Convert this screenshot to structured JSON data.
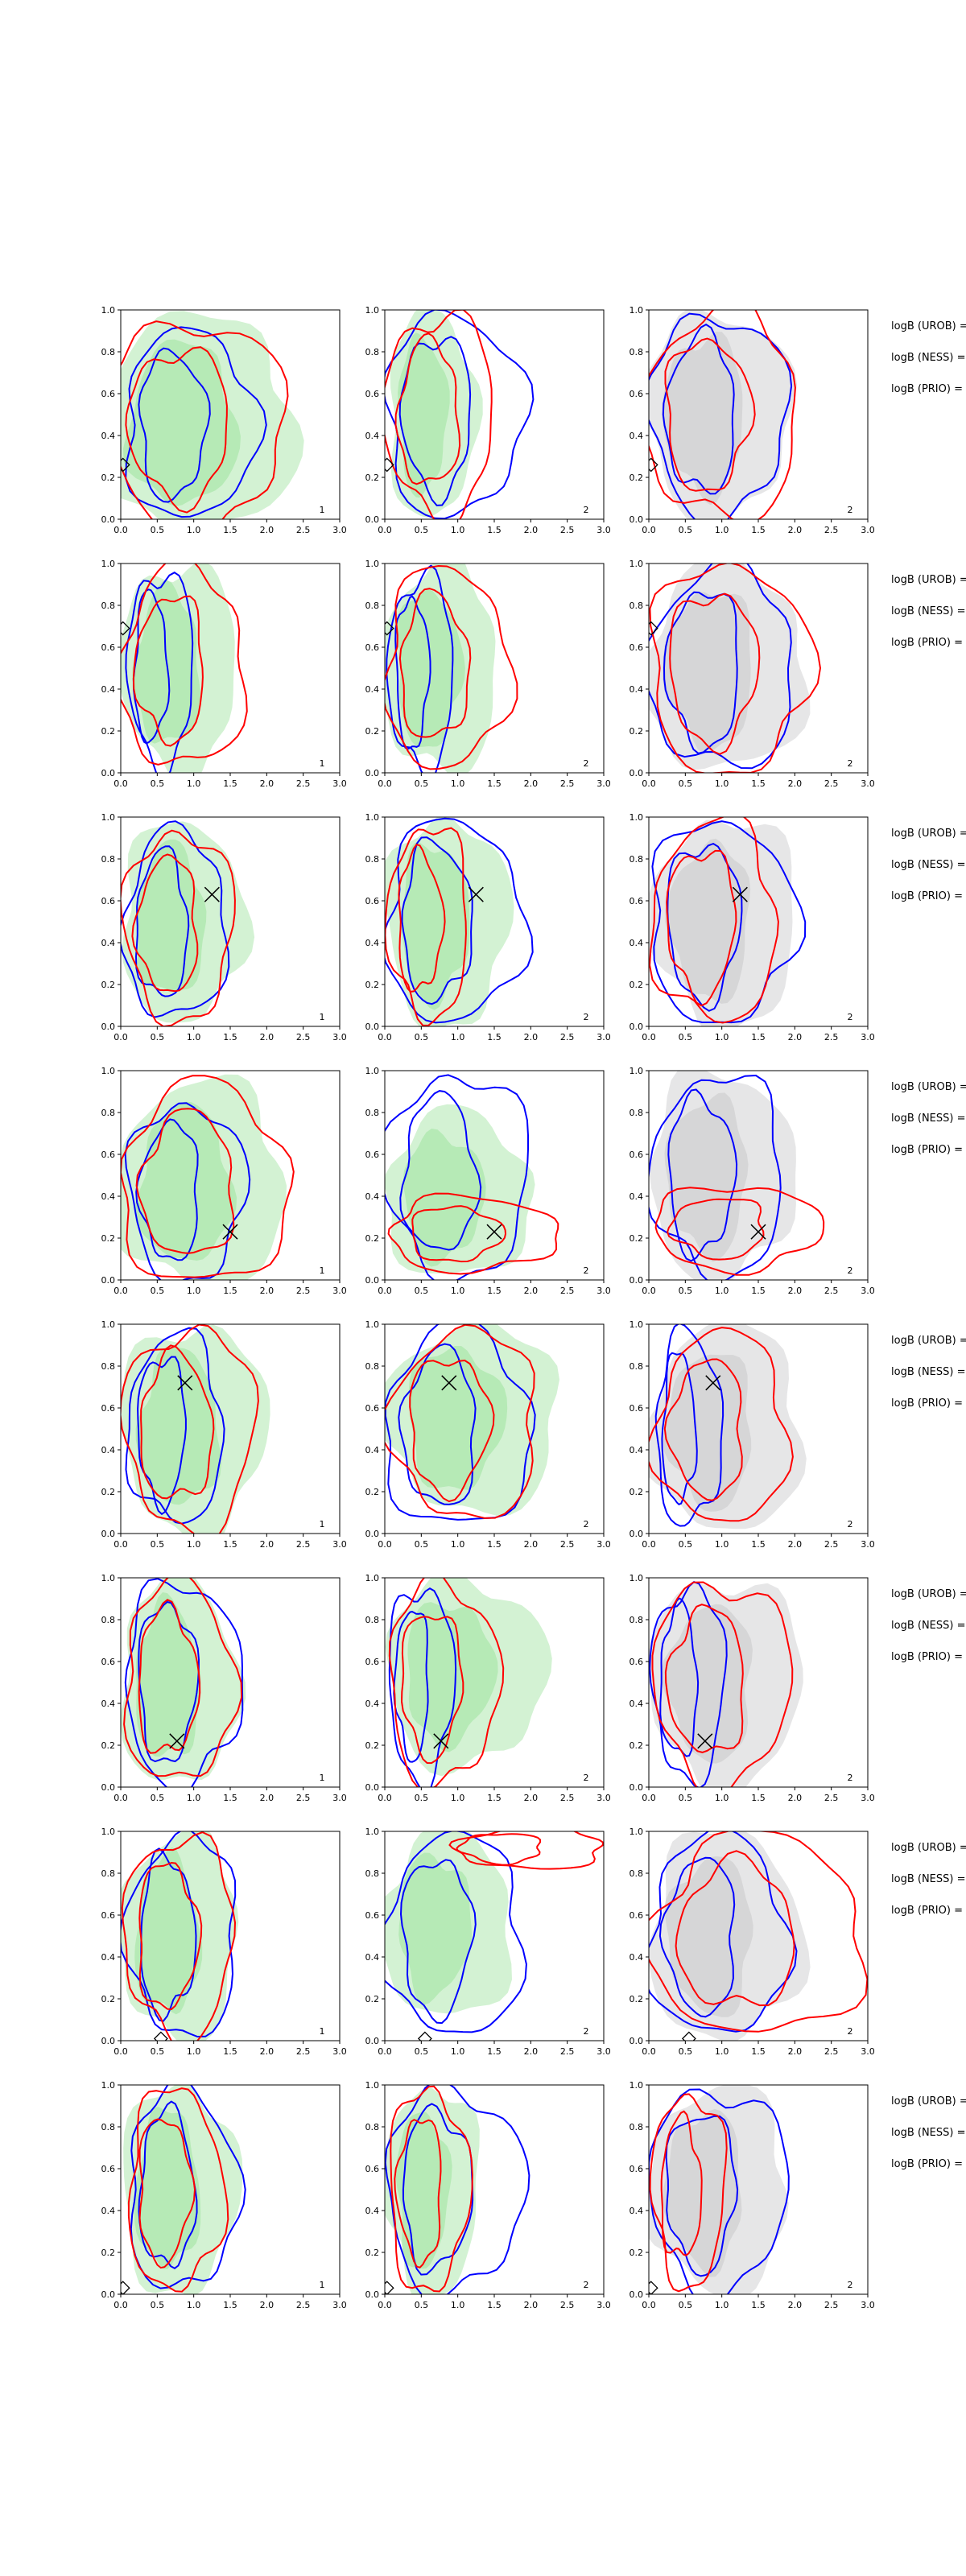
{
  "chart_data": {
    "type": "contour",
    "title": "",
    "xlabel": "",
    "ylabel": "",
    "xlim": [
      0.0,
      3.0
    ],
    "ylim": [
      0.0,
      1.0
    ],
    "x_ticks": [
      "0.0",
      "0.5",
      "1.0",
      "1.5",
      "2.0",
      "2.5",
      "3.0"
    ],
    "y_ticks": [
      "0.0",
      "0.2",
      "0.4",
      "0.6",
      "0.8",
      "1.0"
    ],
    "legend_labels": [
      "logB (UROB) =",
      "logB (NESS) =",
      "logB (PRIO) ="
    ],
    "colors": {
      "green_fill": "#9ee39e",
      "grey_fill": "#c8c8ca",
      "blue_line": "#0000ff",
      "red_line": "#ff0000",
      "marker": "#000000"
    },
    "panels": [
      {
        "label": "1",
        "fill": "green",
        "marker": {
          "type": "diamond",
          "x": 0.03,
          "y": 0.26
        },
        "blue": {
          "x": 0.95,
          "y": 0.45,
          "rx": 0.9,
          "ry": 0.45
        },
        "red": {
          "x": 1.0,
          "y": 0.45,
          "rx": 1.25,
          "ry": 0.5
        },
        "shade": {
          "x": 1.05,
          "y": 0.45,
          "rx": 1.35,
          "ry": 0.52
        }
      },
      {
        "label": "2",
        "fill": "green",
        "marker": {
          "type": "diamond",
          "x": 0.03,
          "y": 0.26
        },
        "blue": {
          "x": 0.95,
          "y": 0.5,
          "rx": 0.95,
          "ry": 0.48
        },
        "red": {
          "x": 0.75,
          "y": 0.5,
          "rx": 0.75,
          "ry": 0.48
        },
        "shade": {
          "x": 0.65,
          "y": 0.5,
          "rx": 0.6,
          "ry": 0.5
        }
      },
      {
        "label": "2",
        "fill": "grey",
        "marker": {
          "type": "diamond",
          "x": 0.03,
          "y": 0.26
        },
        "blue": {
          "x": 0.95,
          "y": 0.5,
          "rx": 0.95,
          "ry": 0.48
        },
        "red": {
          "x": 1.0,
          "y": 0.5,
          "rx": 1.05,
          "ry": 0.5
        },
        "shade": {
          "x": 0.95,
          "y": 0.5,
          "rx": 1.0,
          "ry": 0.5
        }
      },
      {
        "label": "1",
        "fill": "green",
        "marker": {
          "type": "diamond",
          "x": 0.03,
          "y": 0.69
        },
        "blue": {
          "x": 0.55,
          "y": 0.5,
          "rx": 0.45,
          "ry": 0.46
        },
        "red": {
          "x": 0.85,
          "y": 0.5,
          "rx": 0.85,
          "ry": 0.48
        },
        "shade": {
          "x": 0.8,
          "y": 0.5,
          "rx": 0.8,
          "ry": 0.5
        }
      },
      {
        "label": "2",
        "fill": "green",
        "marker": {
          "type": "diamond",
          "x": 0.03,
          "y": 0.69
        },
        "blue": {
          "x": 0.5,
          "y": 0.48,
          "rx": 0.45,
          "ry": 0.46
        },
        "red": {
          "x": 0.85,
          "y": 0.5,
          "rx": 0.85,
          "ry": 0.48
        },
        "shade": {
          "x": 0.75,
          "y": 0.5,
          "rx": 0.8,
          "ry": 0.5
        }
      },
      {
        "label": "2",
        "fill": "grey",
        "marker": {
          "type": "diamond",
          "x": 0.03,
          "y": 0.69
        },
        "blue": {
          "x": 1.0,
          "y": 0.5,
          "rx": 1.0,
          "ry": 0.48
        },
        "red": {
          "x": 1.1,
          "y": 0.5,
          "rx": 1.1,
          "ry": 0.5
        },
        "shade": {
          "x": 1.05,
          "y": 0.5,
          "rx": 1.1,
          "ry": 0.5
        }
      },
      {
        "label": "1",
        "fill": "green",
        "marker": {
          "type": "cross",
          "x": 1.25,
          "y": 0.63
        },
        "blue": {
          "x": 0.75,
          "y": 0.48,
          "rx": 0.7,
          "ry": 0.45
        },
        "red": {
          "x": 0.8,
          "y": 0.48,
          "rx": 0.75,
          "ry": 0.45
        },
        "shade": {
          "x": 0.85,
          "y": 0.5,
          "rx": 0.85,
          "ry": 0.48
        }
      },
      {
        "label": "2",
        "fill": "green",
        "marker": {
          "type": "cross",
          "x": 1.25,
          "y": 0.63
        },
        "blue": {
          "x": 0.95,
          "y": 0.5,
          "rx": 0.95,
          "ry": 0.48
        },
        "red": {
          "x": 0.6,
          "y": 0.5,
          "rx": 0.55,
          "ry": 0.46
        },
        "shade": {
          "x": 0.85,
          "y": 0.5,
          "rx": 0.85,
          "ry": 0.5
        }
      },
      {
        "label": "2",
        "fill": "grey",
        "marker": {
          "type": "cross",
          "x": 1.25,
          "y": 0.63
        },
        "blue": {
          "x": 1.0,
          "y": 0.5,
          "rx": 1.0,
          "ry": 0.48
        },
        "red": {
          "x": 0.9,
          "y": 0.5,
          "rx": 0.85,
          "ry": 0.48
        },
        "shade": {
          "x": 1.05,
          "y": 0.5,
          "rx": 1.0,
          "ry": 0.5
        }
      },
      {
        "label": "1",
        "fill": "green",
        "marker": {
          "type": "cross",
          "x": 1.5,
          "y": 0.23
        },
        "blue": {
          "x": 0.9,
          "y": 0.42,
          "rx": 0.8,
          "ry": 0.42
        },
        "red": {
          "x": 1.15,
          "y": 0.45,
          "rx": 1.15,
          "ry": 0.48
        },
        "shade": {
          "x": 1.1,
          "y": 0.45,
          "rx": 1.15,
          "ry": 0.5
        }
      },
      {
        "label": "2",
        "fill": "green",
        "marker": {
          "type": "cross",
          "x": 1.5,
          "y": 0.23
        },
        "blue": {
          "x": 1.0,
          "y": 0.5,
          "rx": 1.0,
          "ry": 0.48
        },
        "red": {
          "x": 1.2,
          "y": 0.22,
          "rx": 1.15,
          "ry": 0.18
        },
        "shade": {
          "x": 1.0,
          "y": 0.4,
          "rx": 1.0,
          "ry": 0.4
        }
      },
      {
        "label": "2",
        "fill": "grey",
        "marker": {
          "type": "cross",
          "x": 1.5,
          "y": 0.23
        },
        "blue": {
          "x": 0.95,
          "y": 0.5,
          "rx": 0.9,
          "ry": 0.48
        },
        "red": {
          "x": 1.2,
          "y": 0.25,
          "rx": 1.15,
          "ry": 0.2
        },
        "shade": {
          "x": 1.0,
          "y": 0.5,
          "rx": 1.0,
          "ry": 0.5
        }
      },
      {
        "label": "1",
        "fill": "green",
        "marker": {
          "type": "cross",
          "x": 0.88,
          "y": 0.72
        },
        "blue": {
          "x": 0.75,
          "y": 0.5,
          "rx": 0.65,
          "ry": 0.45
        },
        "red": {
          "x": 0.95,
          "y": 0.5,
          "rx": 0.9,
          "ry": 0.48
        },
        "shade": {
          "x": 1.0,
          "y": 0.5,
          "rx": 1.0,
          "ry": 0.5
        }
      },
      {
        "label": "2",
        "fill": "green",
        "marker": {
          "type": "cross",
          "x": 0.88,
          "y": 0.72
        },
        "blue": {
          "x": 1.0,
          "y": 0.5,
          "rx": 1.0,
          "ry": 0.48
        },
        "red": {
          "x": 1.1,
          "y": 0.52,
          "rx": 1.0,
          "ry": 0.45
        },
        "shade": {
          "x": 1.2,
          "y": 0.55,
          "rx": 1.2,
          "ry": 0.45
        }
      },
      {
        "label": "2",
        "fill": "grey",
        "marker": {
          "type": "cross",
          "x": 0.88,
          "y": 0.72
        },
        "blue": {
          "x": 0.55,
          "y": 0.5,
          "rx": 0.45,
          "ry": 0.46
        },
        "red": {
          "x": 1.0,
          "y": 0.5,
          "rx": 0.9,
          "ry": 0.46
        },
        "shade": {
          "x": 1.05,
          "y": 0.5,
          "rx": 1.05,
          "ry": 0.5
        }
      },
      {
        "label": "1",
        "fill": "green",
        "marker": {
          "type": "cross",
          "x": 0.77,
          "y": 0.22
        },
        "blue": {
          "x": 0.85,
          "y": 0.5,
          "rx": 0.8,
          "ry": 0.48
        },
        "red": {
          "x": 0.8,
          "y": 0.5,
          "rx": 0.75,
          "ry": 0.48
        },
        "shade": {
          "x": 0.8,
          "y": 0.5,
          "rx": 0.8,
          "ry": 0.5
        }
      },
      {
        "label": "2",
        "fill": "green",
        "marker": {
          "type": "cross",
          "x": 0.77,
          "y": 0.22
        },
        "blue": {
          "x": 0.5,
          "y": 0.5,
          "rx": 0.45,
          "ry": 0.46
        },
        "red": {
          "x": 0.8,
          "y": 0.5,
          "rx": 0.75,
          "ry": 0.48
        },
        "shade": {
          "x": 1.1,
          "y": 0.55,
          "rx": 1.1,
          "ry": 0.45
        }
      },
      {
        "label": "2",
        "fill": "grey",
        "marker": {
          "type": "cross",
          "x": 0.77,
          "y": 0.22
        },
        "blue": {
          "x": 0.55,
          "y": 0.5,
          "rx": 0.5,
          "ry": 0.46
        },
        "red": {
          "x": 1.0,
          "y": 0.5,
          "rx": 0.95,
          "ry": 0.48
        },
        "shade": {
          "x": 1.05,
          "y": 0.5,
          "rx": 1.05,
          "ry": 0.5
        }
      },
      {
        "label": "1",
        "fill": "green",
        "marker": {
          "type": "diamond",
          "x": 0.55,
          "y": 0.01
        },
        "blue": {
          "x": 0.85,
          "y": 0.5,
          "rx": 0.75,
          "ry": 0.48
        },
        "red": {
          "x": 0.8,
          "y": 0.5,
          "rx": 0.75,
          "ry": 0.48
        },
        "shade": {
          "x": 0.8,
          "y": 0.5,
          "rx": 0.8,
          "ry": 0.5
        }
      },
      {
        "label": "2",
        "fill": "green",
        "marker": {
          "type": "diamond",
          "x": 0.55,
          "y": 0.01
        },
        "blue": {
          "x": 0.95,
          "y": 0.5,
          "rx": 0.95,
          "ry": 0.48
        },
        "red": {
          "x": 2.0,
          "y": 0.92,
          "rx": 1.0,
          "ry": 0.1
        },
        "shade": {
          "x": 0.85,
          "y": 0.55,
          "rx": 0.9,
          "ry": 0.45
        }
      },
      {
        "label": "2",
        "fill": "grey",
        "marker": {
          "type": "diamond",
          "x": 0.55,
          "y": 0.01
        },
        "blue": {
          "x": 0.95,
          "y": 0.5,
          "rx": 0.95,
          "ry": 0.48
        },
        "red": {
          "x": 1.5,
          "y": 0.5,
          "rx": 1.45,
          "ry": 0.48
        },
        "shade": {
          "x": 1.05,
          "y": 0.5,
          "rx": 1.05,
          "ry": 0.5
        }
      },
      {
        "label": "1",
        "fill": "green",
        "marker": {
          "type": "diamond",
          "x": 0.03,
          "y": 0.03
        },
        "blue": {
          "x": 0.85,
          "y": 0.5,
          "rx": 0.75,
          "ry": 0.48
        },
        "red": {
          "x": 0.75,
          "y": 0.5,
          "rx": 0.65,
          "ry": 0.48
        },
        "shade": {
          "x": 0.8,
          "y": 0.5,
          "rx": 0.8,
          "ry": 0.5
        }
      },
      {
        "label": "2",
        "fill": "green",
        "marker": {
          "type": "diamond",
          "x": 0.03,
          "y": 0.03
        },
        "blue": {
          "x": 0.95,
          "y": 0.5,
          "rx": 0.95,
          "ry": 0.48
        },
        "red": {
          "x": 0.6,
          "y": 0.5,
          "rx": 0.55,
          "ry": 0.48
        },
        "shade": {
          "x": 0.65,
          "y": 0.5,
          "rx": 0.65,
          "ry": 0.5
        }
      },
      {
        "label": "2",
        "fill": "grey",
        "marker": {
          "type": "diamond",
          "x": 0.03,
          "y": 0.03
        },
        "blue": {
          "x": 0.95,
          "y": 0.5,
          "rx": 0.95,
          "ry": 0.48
        },
        "red": {
          "x": 0.55,
          "y": 0.5,
          "rx": 0.5,
          "ry": 0.46
        },
        "shade": {
          "x": 0.95,
          "y": 0.5,
          "rx": 0.95,
          "ry": 0.5
        }
      }
    ]
  }
}
